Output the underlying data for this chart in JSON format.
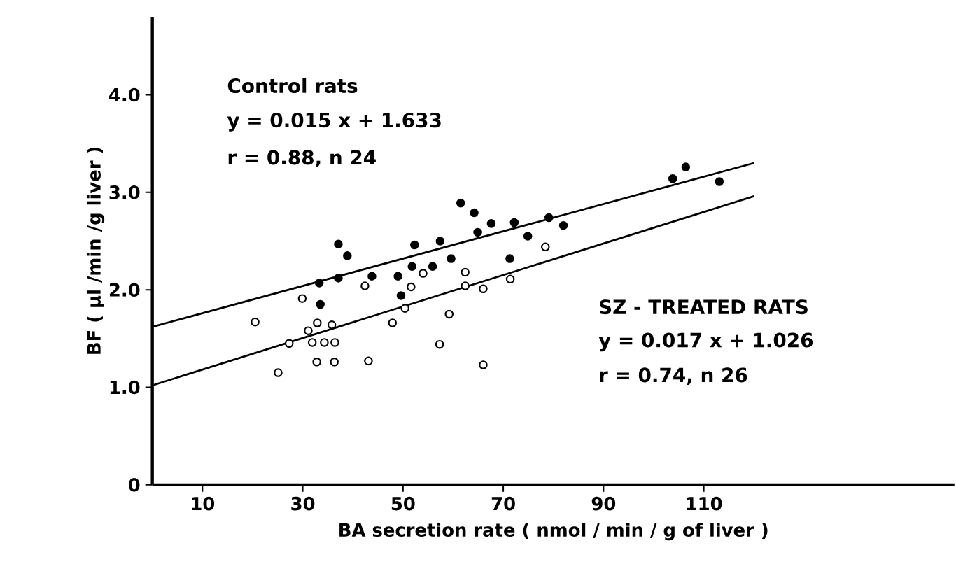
{
  "chart_data": {
    "type": "scatter",
    "xlabel": "BA secretion rate ( nmol / min / g of liver )",
    "ylabel": "BF ( μl /min /g liver )",
    "xlim": [
      0,
      160
    ],
    "ylim": [
      0,
      4.8
    ],
    "xticks": [
      10,
      30,
      50,
      70,
      90,
      110
    ],
    "yticks": [
      0,
      {
        "value": 1,
        "label": "1.0"
      },
      {
        "value": 2,
        "label": "2.0"
      },
      {
        "value": 3,
        "label": "3.0"
      },
      {
        "value": 4,
        "label": "4.0"
      }
    ],
    "grid": false,
    "marker": "circle",
    "series": [
      {
        "color": "#000000",
        "x": [
          37.1,
          38.9,
          33.3,
          37.1,
          33.5,
          43.8,
          49.0,
          49.6,
          52.3,
          51.8,
          55.9,
          57.4,
          59.6,
          61.5,
          64.2,
          64.9,
          67.6,
          72.2,
          71.3,
          74.9,
          79.1,
          82.0,
          103.8,
          106.4,
          113.1
        ],
        "values": [
          2.47,
          2.35,
          2.07,
          2.12,
          1.85,
          2.14,
          2.14,
          1.94,
          2.46,
          2.24,
          2.24,
          2.5,
          2.32,
          2.89,
          2.79,
          2.59,
          2.68,
          2.69,
          2.32,
          2.55,
          2.74,
          2.66,
          3.14,
          3.26,
          3.11
        ]
      },
      {
        "color": "#ffffff",
        "x": [
          20.5,
          25.1,
          27.3,
          29.9,
          31.1,
          31.9,
          32.9,
          32.8,
          34.3,
          35.8,
          36.4,
          36.3,
          42.4,
          43.1,
          47.9,
          50.4,
          51.6,
          54.0,
          57.3,
          59.2,
          62.4,
          62.4,
          66.0,
          66.0,
          71.4,
          78.4
        ],
        "values": [
          1.67,
          1.15,
          1.45,
          1.91,
          1.58,
          1.46,
          1.66,
          1.26,
          1.46,
          1.64,
          1.46,
          1.26,
          2.04,
          1.27,
          1.66,
          1.81,
          2.03,
          2.17,
          1.44,
          1.75,
          2.18,
          2.04,
          2.01,
          1.23,
          2.11,
          2.44
        ]
      },
      {
        "type": "line",
        "marker": "none",
        "color": "#000000",
        "x": [
          0,
          120
        ],
        "values": [
          1.62,
          3.3
        ]
      },
      {
        "type": "line",
        "marker": "none",
        "color": "#000000",
        "x": [
          0,
          120
        ],
        "values": [
          1.02,
          2.96
        ]
      }
    ],
    "annotations": [
      "Control rats",
      "y = 0.015 x + 1.633",
      "r = 0.88, n 24",
      "SZ - TREATED RATS",
      "y = 0.017 x + 1.026",
      "r = 0.74, n 26"
    ]
  }
}
